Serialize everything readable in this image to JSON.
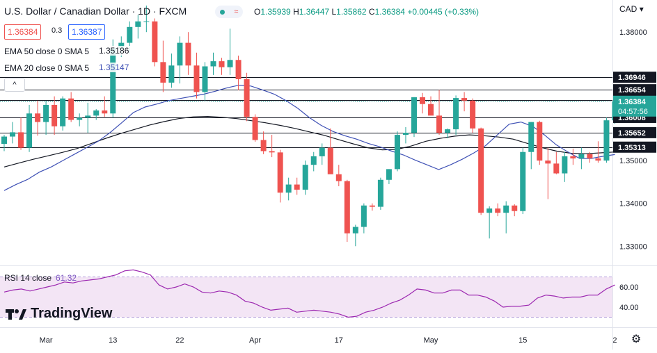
{
  "header": {
    "title": "U.S. Dollar / Canadian Dollar · 1D · FXCM",
    "ohlc": {
      "open_label": "O",
      "open": "1.35939",
      "high_label": "H",
      "high": "1.36447",
      "low_label": "L",
      "low": "1.35862",
      "close_label": "C",
      "close": "1.36384",
      "change": "+0.00445 (+0.33%)"
    },
    "sell_price": "1.36384",
    "spread": "0.3",
    "buy_price": "1.36387"
  },
  "indicators": {
    "ema50_label": "EMA 50 close 0 SMA 5",
    "ema50_value": "1.35186",
    "ema20_label": "EMA 20 close 0 SMA 5",
    "ema20_value": "1.35147",
    "collapse_glyph": "^"
  },
  "currency": "CAD",
  "countdown": "04:57:56",
  "rsi": {
    "label": "RSI 14 close",
    "value": "61.32"
  },
  "logo_text": "TradingView",
  "colors": {
    "up": "#26a69a",
    "down": "#ef5350",
    "ema20": "#3f51b5",
    "ema50": "#131722",
    "rsi": "#9c27b0",
    "rsi_band": "#f3e5f5"
  },
  "chart_data": [
    {
      "type": "candlestick",
      "title": "U.S. Dollar / Canadian Dollar · 1D · FXCM",
      "x_tick_labels": [
        "Mar",
        "13",
        "22",
        "Apr",
        "17",
        "May",
        "15",
        "2"
      ],
      "y_tick_labels": [
        "1.38000",
        "1.37000",
        "1.36000",
        "1.35000",
        "1.34000",
        "1.33000"
      ],
      "ylim": [
        1.3255,
        1.3875
      ],
      "price_levels": [
        1.36946,
        1.36654,
        1.36406,
        1.36008,
        1.35652,
        1.35313
      ],
      "last_price": 1.36384,
      "candles": [
        [
          1.3539,
          1.356,
          1.3522,
          1.3556
        ],
        [
          1.3556,
          1.359,
          1.354,
          1.3566
        ],
        [
          1.3566,
          1.36,
          1.3525,
          1.353
        ],
        [
          1.353,
          1.363,
          1.352,
          1.361
        ],
        [
          1.361,
          1.364,
          1.3558,
          1.359
        ],
        [
          1.359,
          1.364,
          1.356,
          1.363
        ],
        [
          1.363,
          1.365,
          1.356,
          1.358
        ],
        [
          1.358,
          1.365,
          1.357,
          1.3645
        ],
        [
          1.3645,
          1.366,
          1.359,
          1.3595
        ],
        [
          1.3595,
          1.361,
          1.358,
          1.36
        ],
        [
          1.36,
          1.3635,
          1.3565,
          1.3605
        ],
        [
          1.3605,
          1.362,
          1.3595,
          1.3617
        ],
        [
          1.3617,
          1.365,
          1.3602,
          1.361
        ],
        [
          1.361,
          1.3783,
          1.36,
          1.3762
        ],
        [
          1.3762,
          1.379,
          1.3742,
          1.3775
        ],
        [
          1.3775,
          1.3825,
          1.375,
          1.3812
        ],
        [
          1.3812,
          1.384,
          1.3785,
          1.3825
        ],
        [
          1.3825,
          1.3862,
          1.38,
          1.3825
        ],
        [
          1.3825,
          1.3832,
          1.372,
          1.373
        ],
        [
          1.373,
          1.378,
          1.366,
          1.3682
        ],
        [
          1.3682,
          1.375,
          1.367,
          1.3722
        ],
        [
          1.3722,
          1.379,
          1.368,
          1.3775
        ],
        [
          1.3775,
          1.38,
          1.37,
          1.3722
        ],
        [
          1.3722,
          1.3752,
          1.3645,
          1.366
        ],
        [
          1.366,
          1.373,
          1.364,
          1.372
        ],
        [
          1.372,
          1.3752,
          1.37,
          1.3732
        ],
        [
          1.3732,
          1.374,
          1.37,
          1.3718
        ],
        [
          1.3718,
          1.3808,
          1.37,
          1.3735
        ],
        [
          1.3735,
          1.3745,
          1.3664,
          1.369
        ],
        [
          1.369,
          1.3705,
          1.3592,
          1.3602
        ],
        [
          1.3602,
          1.3608,
          1.3544,
          1.3548
        ],
        [
          1.3548,
          1.3568,
          1.3515,
          1.3522
        ],
        [
          1.3522,
          1.356,
          1.3508,
          1.3519
        ],
        [
          1.3519,
          1.3525,
          1.3402,
          1.3425
        ],
        [
          1.3425,
          1.346,
          1.3407,
          1.3444
        ],
        [
          1.3444,
          1.346,
          1.342,
          1.3432
        ],
        [
          1.3432,
          1.35,
          1.342,
          1.349
        ],
        [
          1.349,
          1.352,
          1.3475,
          1.351
        ],
        [
          1.351,
          1.354,
          1.349,
          1.353
        ],
        [
          1.353,
          1.3575,
          1.347,
          1.3468
        ],
        [
          1.3468,
          1.349,
          1.344,
          1.3452
        ],
        [
          1.3452,
          1.3455,
          1.331,
          1.333
        ],
        [
          1.333,
          1.335,
          1.33,
          1.3345
        ],
        [
          1.3345,
          1.34,
          1.333,
          1.3395
        ],
        [
          1.3395,
          1.34,
          1.3383,
          1.3392
        ],
        [
          1.3392,
          1.346,
          1.3385,
          1.3455
        ],
        [
          1.3455,
          1.348,
          1.3445,
          1.348
        ],
        [
          1.348,
          1.3568,
          1.3475,
          1.356
        ],
        [
          1.356,
          1.3578,
          1.354,
          1.3565
        ],
        [
          1.3565,
          1.3648,
          1.3555,
          1.3648
        ],
        [
          1.3648,
          1.3658,
          1.361,
          1.3632
        ],
        [
          1.3632,
          1.365,
          1.361,
          1.3605
        ],
        [
          1.3605,
          1.3665,
          1.356,
          1.3565
        ],
        [
          1.3565,
          1.3575,
          1.3552,
          1.3573
        ],
        [
          1.3573,
          1.3652,
          1.356,
          1.3646
        ],
        [
          1.3646,
          1.366,
          1.3615,
          1.364
        ],
        [
          1.364,
          1.3645,
          1.3565,
          1.3575
        ],
        [
          1.3575,
          1.3577,
          1.3373,
          1.3378
        ],
        [
          1.3378,
          1.3393,
          1.3318,
          1.3388
        ],
        [
          1.3388,
          1.34,
          1.337,
          1.3378
        ],
        [
          1.3378,
          1.3405,
          1.333,
          1.3395
        ],
        [
          1.3395,
          1.3398,
          1.337,
          1.3382
        ],
        [
          1.3382,
          1.353,
          1.3375,
          1.352
        ],
        [
          1.352,
          1.359,
          1.348,
          1.359
        ],
        [
          1.359,
          1.3593,
          1.349,
          1.35
        ],
        [
          1.35,
          1.353,
          1.341,
          1.3493
        ],
        [
          1.3493,
          1.352,
          1.3468,
          1.347
        ],
        [
          1.347,
          1.352,
          1.345,
          1.351
        ],
        [
          1.351,
          1.3528,
          1.349,
          1.3505
        ],
        [
          1.3505,
          1.353,
          1.348,
          1.3515
        ],
        [
          1.3515,
          1.352,
          1.3495,
          1.3505
        ],
        [
          1.3505,
          1.3545,
          1.3495,
          1.35
        ],
        [
          1.35,
          1.36,
          1.3495,
          1.3594
        ],
        [
          1.3594,
          1.3645,
          1.3586,
          1.3638
        ]
      ],
      "ema20": [
        1.343,
        1.3444,
        1.3456,
        1.3473,
        1.3485,
        1.35,
        1.3515,
        1.353,
        1.3545,
        1.3565,
        1.3588,
        1.3612,
        1.3625,
        1.3632,
        1.364,
        1.3645,
        1.365,
        1.3655,
        1.3662,
        1.367,
        1.3676,
        1.3674,
        1.3665,
        1.3655,
        1.364,
        1.3622,
        1.36,
        1.3582,
        1.3568,
        1.3558,
        1.355,
        1.354,
        1.3532,
        1.3522,
        1.3513,
        1.3501,
        1.349,
        1.3479,
        1.349,
        1.3503,
        1.3518,
        1.3535,
        1.356,
        1.3585,
        1.359,
        1.358,
        1.356,
        1.3537,
        1.352,
        1.3505,
        1.3505,
        1.351,
        1.3514
      ],
      "ema50": [
        1.3485,
        1.3494,
        1.3503,
        1.3511,
        1.3519,
        1.3528,
        1.354,
        1.3552,
        1.3563,
        1.3573,
        1.3583,
        1.3591,
        1.3598,
        1.3602,
        1.3603,
        1.3601,
        1.3598,
        1.3593,
        1.3588,
        1.3582,
        1.3575,
        1.3567,
        1.3559,
        1.3549,
        1.3539,
        1.353,
        1.3525,
        1.3526,
        1.3534,
        1.3545,
        1.3552,
        1.3557,
        1.356,
        1.3558,
        1.3555,
        1.355,
        1.354,
        1.353,
        1.3522,
        1.3517,
        1.3516,
        1.3518,
        1.352
      ],
      "rsi": [
        55,
        57,
        58,
        56,
        58,
        60,
        62,
        65,
        64,
        66,
        67,
        68,
        70,
        72,
        76,
        77,
        75,
        72,
        62,
        58,
        60,
        63,
        60,
        55,
        54,
        56,
        55,
        52,
        46,
        44,
        40,
        37,
        38,
        39,
        35,
        36,
        37,
        36,
        35,
        33,
        30,
        31,
        35,
        37,
        40,
        44,
        47,
        52,
        58,
        57,
        54,
        54,
        57,
        57,
        52,
        52,
        50,
        46,
        40,
        41,
        41,
        42,
        49,
        52,
        51,
        49,
        50,
        50,
        52,
        52,
        58,
        62
      ],
      "rsi_ylim": [
        20,
        80
      ],
      "rsi_y_tick_labels": [
        "60.00",
        "40.00"
      ],
      "rsi_bands": [
        70,
        30
      ]
    }
  ]
}
